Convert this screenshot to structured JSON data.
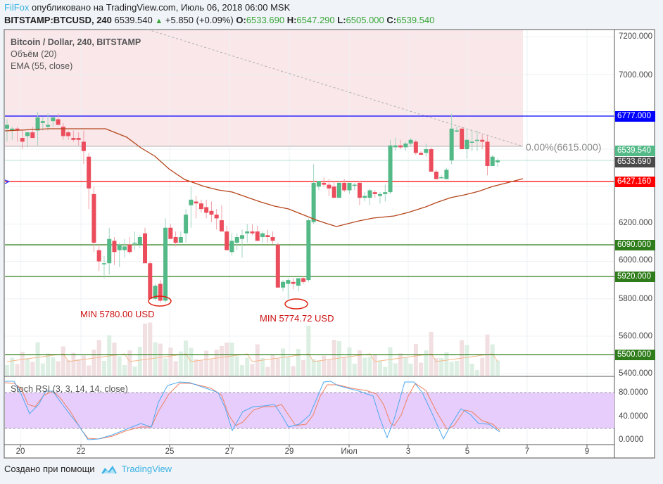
{
  "header": {
    "author": "FilFox",
    "published": "опубликовано на TradingView.com, Июль 06, 2018 06:00 MSK",
    "symbol": "BITSTAMP:BTCUSD, 240",
    "last": "6539.540",
    "change": "+5.850 (+0.09%)",
    "o_label": "O:",
    "o": "6533.690",
    "h_label": "H:",
    "h": "6547.290",
    "l_label": "L:",
    "l": "6505.000",
    "c_label": "C:",
    "c": "6539.540"
  },
  "legend": {
    "title": "Bitcoin / Dollar, 240, BITSTAMP",
    "volume": "Объём (20)",
    "ema": "EMA (55, close)",
    "stoch": "Stoch RSI (3, 3, 14, 14, close)"
  },
  "annotations": {
    "min1": "MIN 5780.00 USD",
    "min2": "MIN 5774.72 USD",
    "fib": "0.00%(6615.000)"
  },
  "price_axis": {
    "ticks": [
      "7200.000",
      "7000.000",
      "6200.000",
      "6000.000",
      "5800.000",
      "5600.000",
      "5400.000"
    ],
    "tags": [
      {
        "value": "6777.000",
        "color": "#0000ff"
      },
      {
        "value": "6539.540",
        "color": "#53b987"
      },
      {
        "value": "6533.690",
        "color": "#4a4a4a"
      },
      {
        "value": "6427.160",
        "color": "#ff0000"
      },
      {
        "value": "6090.000",
        "color": "#2f7d1a"
      },
      {
        "value": "5920.000",
        "color": "#2f7d1a"
      },
      {
        "value": "5500.000",
        "color": "#2f7d1a"
      }
    ]
  },
  "stoch_axis": {
    "ticks": [
      "80.0000",
      "40.0000",
      "0.0000"
    ]
  },
  "time_axis": {
    "labels": [
      "20",
      "22",
      "25",
      "27",
      "29",
      "Июл",
      "3",
      "5",
      "7",
      "9"
    ]
  },
  "footer": {
    "created": "Создано при помощи",
    "brand": "TradingView"
  },
  "colors": {
    "up": "#53b987",
    "down": "#eb4d5c",
    "ema": "#b5451b",
    "hline_blue": "#0000ff",
    "hline_red": "#ff0000",
    "hline_green": "#2f7d1a",
    "stoch_k": "#4ea8f0",
    "stoch_d": "#f08060",
    "band": "#e6cdfc"
  },
  "chart_data": {
    "type": "candlestick",
    "title": "Bitcoin / Dollar, 240, BITSTAMP",
    "ylim": [
      5380,
      7260
    ],
    "x_labels": [
      "20",
      "22",
      "25",
      "27",
      "29",
      "Июл",
      "3",
      "5",
      "7",
      "9"
    ],
    "horizontal_levels": [
      6777.0,
      6427.16,
      6090.0,
      5920.0,
      5500.0
    ],
    "fib_level": {
      "label": "0.00%",
      "value": 6615.0
    },
    "annotations": [
      {
        "text": "MIN 5780.00 USD",
        "value": 5780.0
      },
      {
        "text": "MIN 5774.72 USD",
        "value": 5774.72
      }
    ],
    "last": {
      "open": 6533.69,
      "high": 6547.29,
      "low": 6505.0,
      "close": 6539.54
    },
    "candles_ohlc": [
      [
        6710,
        6760,
        6640,
        6730
      ],
      [
        6700,
        6720,
        6650,
        6710
      ],
      [
        6710,
        6720,
        6640,
        6700
      ],
      [
        6660,
        6700,
        6600,
        6640
      ],
      [
        6670,
        6690,
        6610,
        6690
      ],
      [
        6690,
        6720,
        6660,
        6660
      ],
      [
        6700,
        6800,
        6620,
        6770
      ],
      [
        6740,
        6770,
        6700,
        6750
      ],
      [
        6720,
        6790,
        6700,
        6730
      ],
      [
        6750,
        6770,
        6720,
        6770
      ],
      [
        6760,
        6790,
        6730,
        6730
      ],
      [
        6720,
        6740,
        6650,
        6670
      ],
      [
        6690,
        6700,
        6650,
        6670
      ],
      [
        6660,
        6700,
        6640,
        6650
      ],
      [
        6660,
        6690,
        6620,
        6650
      ],
      [
        6640,
        6700,
        6520,
        6590
      ],
      [
        6560,
        6580,
        6280,
        6390
      ],
      [
        6360,
        6400,
        6050,
        6100
      ],
      [
        6060,
        6090,
        5950,
        6000
      ],
      [
        5990,
        6030,
        5910,
        5990
      ],
      [
        5990,
        6180,
        5930,
        6120
      ],
      [
        6110,
        6130,
        5980,
        6050
      ],
      [
        6060,
        6100,
        5970,
        6090
      ],
      [
        6060,
        6120,
        6020,
        6080
      ],
      [
        6090,
        6130,
        6040,
        6050
      ],
      [
        6100,
        6160,
        6060,
        6100
      ],
      [
        6090,
        6140,
        6070,
        6130
      ],
      [
        6150,
        6180,
        6090,
        5990
      ],
      [
        5990,
        6000,
        5800,
        5800
      ],
      [
        5800,
        5880,
        5790,
        5870
      ],
      [
        5880,
        5900,
        5780,
        5790
      ],
      [
        5790,
        6230,
        5780,
        6180
      ],
      [
        6180,
        6200,
        6130,
        6120
      ],
      [
        6130,
        6160,
        6080,
        6100
      ],
      [
        6100,
        6160,
        6100,
        6130
      ],
      [
        6150,
        6280,
        6100,
        6250
      ],
      [
        6300,
        6400,
        6180,
        6330
      ],
      [
        6320,
        6350,
        6230,
        6310
      ],
      [
        6310,
        6330,
        6260,
        6280
      ],
      [
        6290,
        6330,
        6230,
        6260
      ],
      [
        6270,
        6320,
        6210,
        6250
      ],
      [
        6250,
        6280,
        6170,
        6230
      ],
      [
        6220,
        6300,
        6190,
        6160
      ],
      [
        6160,
        6190,
        6080,
        6060
      ],
      [
        6050,
        6150,
        6030,
        6110
      ],
      [
        6100,
        6150,
        6060,
        6130
      ],
      [
        6120,
        6170,
        6020,
        6140
      ],
      [
        6150,
        6200,
        6100,
        6160
      ],
      [
        6160,
        6200,
        6140,
        6150
      ],
      [
        6160,
        6190,
        6110,
        6110
      ],
      [
        6130,
        6160,
        6100,
        6150
      ],
      [
        6140,
        6170,
        6100,
        6130
      ],
      [
        6130,
        6160,
        6090,
        6110
      ],
      [
        6090,
        6100,
        5860,
        5860
      ],
      [
        5860,
        5900,
        5840,
        5890
      ],
      [
        5880,
        5910,
        5800,
        5900
      ],
      [
        5890,
        5910,
        5850,
        5880
      ],
      [
        5870,
        5910,
        5840,
        5910
      ],
      [
        5910,
        5920,
        5880,
        5890
      ],
      [
        5900,
        6230,
        5890,
        6220
      ],
      [
        6210,
        6520,
        6200,
        6420
      ],
      [
        6400,
        6430,
        6380,
        6430
      ],
      [
        6420,
        6450,
        6400,
        6410
      ],
      [
        6410,
        6440,
        6350,
        6390
      ],
      [
        6400,
        6430,
        6350,
        6340
      ],
      [
        6340,
        6430,
        6340,
        6420
      ],
      [
        6420,
        6440,
        6370,
        6380
      ],
      [
        6380,
        6410,
        6360,
        6420
      ],
      [
        6410,
        6420,
        6380,
        6410
      ],
      [
        6420,
        6430,
        6300,
        6340
      ],
      [
        6340,
        6370,
        6320,
        6350
      ],
      [
        6340,
        6390,
        6300,
        6380
      ],
      [
        6370,
        6380,
        6340,
        6360
      ],
      [
        6350,
        6370,
        6310,
        6360
      ],
      [
        6360,
        6410,
        6320,
        6370
      ],
      [
        6370,
        6650,
        6360,
        6620
      ],
      [
        6610,
        6660,
        6590,
        6620
      ],
      [
        6620,
        6650,
        6600,
        6610
      ],
      [
        6610,
        6640,
        6590,
        6630
      ],
      [
        6630,
        6660,
        6620,
        6650
      ],
      [
        6640,
        6650,
        6570,
        6580
      ],
      [
        6580,
        6590,
        6570,
        6570
      ],
      [
        6580,
        6630,
        6560,
        6600
      ],
      [
        6600,
        6610,
        6490,
        6480
      ],
      [
        6480,
        6490,
        6440,
        6440
      ],
      [
        6450,
        6460,
        6450,
        6450
      ],
      [
        6440,
        6500,
        6440,
        6490
      ],
      [
        6540,
        6790,
        6520,
        6710
      ],
      [
        6700,
        6720,
        6690,
        6700
      ],
      [
        6710,
        6720,
        6600,
        6600
      ],
      [
        6600,
        6710,
        6550,
        6650
      ],
      [
        6640,
        6700,
        6590,
        6640
      ],
      [
        6650,
        6700,
        6590,
        6650
      ],
      [
        6650,
        6680,
        6600,
        6640
      ],
      [
        6640,
        6670,
        6460,
        6510
      ],
      [
        6510,
        6570,
        6520,
        6560
      ],
      [
        6530,
        6550,
        6505,
        6540
      ]
    ],
    "ema55_description": "declines from ~6690 to ~6180 near Jul 1, then rises to ~6440",
    "volume_note": "Объём (20) histogram with moving average",
    "stoch_rsi": {
      "k_color": "#4ea8f0",
      "d_color": "#f08060",
      "upper": 80,
      "lower": 20
    }
  }
}
